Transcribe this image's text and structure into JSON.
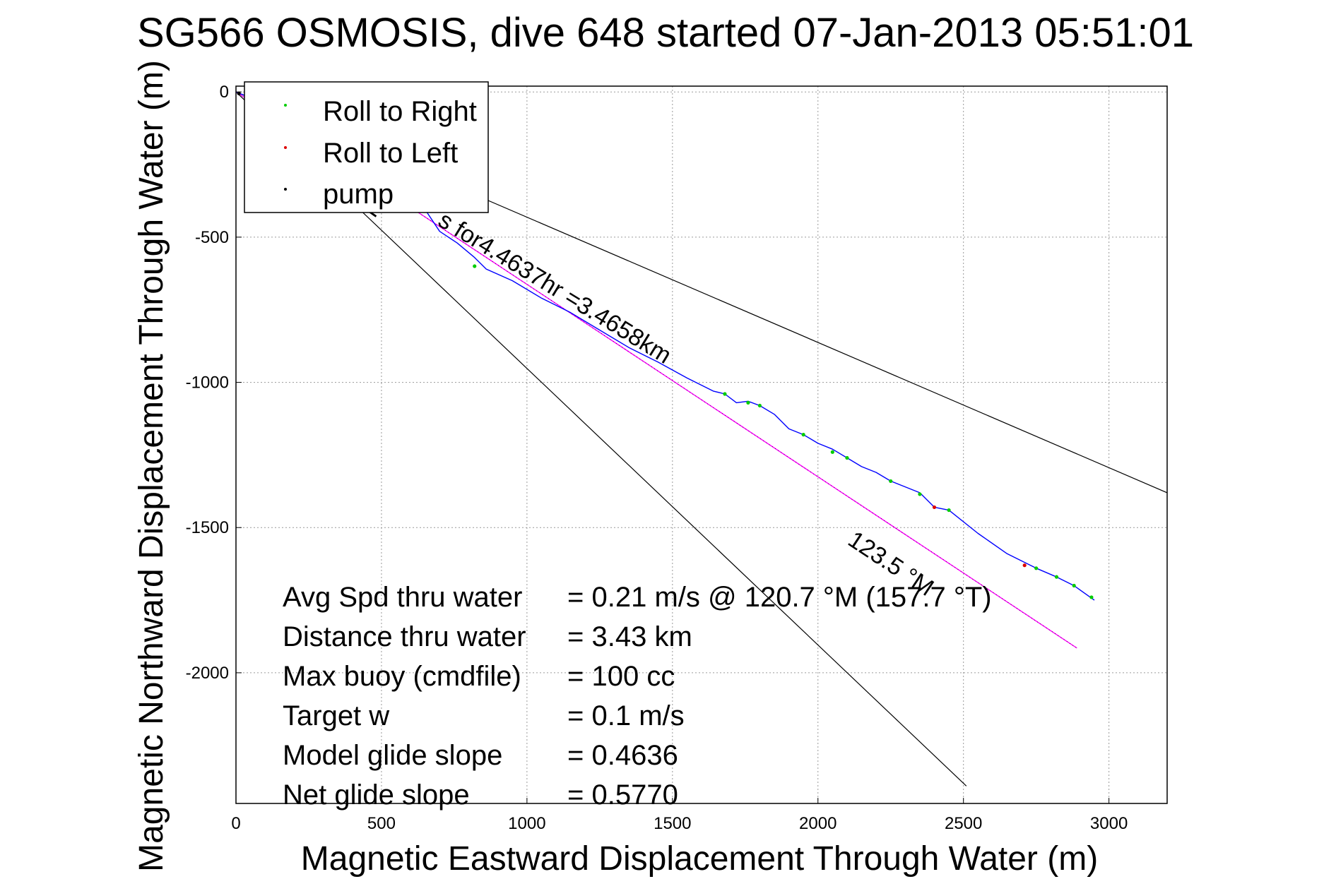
{
  "chart_data": {
    "type": "line",
    "title": "SG566 OSMOSIS, dive 648 started 07-Jan-2013 05:51:01",
    "xlabel": "Magnetic Eastward Displacement Through Water (m)",
    "ylabel": "Magnetic Northward Displacement Through Water (m)",
    "xlim": [
      0,
      3200
    ],
    "ylim": [
      -2450,
      20
    ],
    "xticks": [
      0,
      500,
      1000,
      1500,
      2000,
      2500,
      3000
    ],
    "yticks": [
      0,
      -500,
      -1000,
      -1500,
      -2000
    ],
    "grid": true,
    "legend": {
      "position": "top-left",
      "entries": [
        {
          "label": "Roll to Right",
          "color": "#00cc00"
        },
        {
          "label": "Roll to Left",
          "color": "#dd0000"
        },
        {
          "label": "pump",
          "color": "#000000"
        }
      ]
    },
    "track": {
      "color": "#0000ff",
      "points": [
        [
          0,
          0
        ],
        [
          100,
          -40
        ],
        [
          200,
          -90
        ],
        [
          300,
          -130
        ],
        [
          400,
          -190
        ],
        [
          500,
          -250
        ],
        [
          600,
          -330
        ],
        [
          700,
          -480
        ],
        [
          760,
          -520
        ],
        [
          820,
          -570
        ],
        [
          860,
          -610
        ],
        [
          950,
          -650
        ],
        [
          1050,
          -710
        ],
        [
          1150,
          -760
        ],
        [
          1250,
          -820
        ],
        [
          1350,
          -880
        ],
        [
          1450,
          -930
        ],
        [
          1550,
          -985
        ],
        [
          1640,
          -1030
        ],
        [
          1680,
          -1040
        ],
        [
          1720,
          -1070
        ],
        [
          1760,
          -1065
        ],
        [
          1800,
          -1080
        ],
        [
          1850,
          -1110
        ],
        [
          1900,
          -1160
        ],
        [
          1950,
          -1180
        ],
        [
          2000,
          -1210
        ],
        [
          2050,
          -1230
        ],
        [
          2100,
          -1260
        ],
        [
          2150,
          -1290
        ],
        [
          2200,
          -1310
        ],
        [
          2250,
          -1340
        ],
        [
          2300,
          -1360
        ],
        [
          2350,
          -1380
        ],
        [
          2400,
          -1430
        ],
        [
          2450,
          -1440
        ],
        [
          2550,
          -1520
        ],
        [
          2650,
          -1590
        ],
        [
          2750,
          -1640
        ],
        [
          2820,
          -1670
        ],
        [
          2880,
          -1700
        ],
        [
          2950,
          -1750
        ]
      ]
    },
    "roll_right_points": [
      [
        70,
        -20
      ],
      [
        820,
        -600
      ],
      [
        1680,
        -1040
      ],
      [
        1760,
        -1070
      ],
      [
        1800,
        -1080
      ],
      [
        1950,
        -1180
      ],
      [
        2050,
        -1240
      ],
      [
        2100,
        -1260
      ],
      [
        2250,
        -1340
      ],
      [
        2350,
        -1385
      ],
      [
        2450,
        -1440
      ],
      [
        2750,
        -1640
      ],
      [
        2820,
        -1670
      ],
      [
        2880,
        -1700
      ],
      [
        2940,
        -1740
      ]
    ],
    "roll_left_points": [
      [
        2400,
        -1430
      ],
      [
        2710,
        -1630
      ]
    ],
    "pump_points": [
      [
        10,
        -5
      ]
    ],
    "heading_line": {
      "color": "#ff00ff",
      "label": "123.5 °M",
      "points": [
        [
          0,
          0
        ],
        [
          2890,
          -1915
        ]
      ]
    },
    "reference_lines": [
      {
        "color": "#000000",
        "label": "M",
        "points": [
          [
            0,
            0
          ],
          [
            2510,
            -2390
          ]
        ]
      },
      {
        "color": "#000000",
        "label": "",
        "points": [
          [
            0,
            0
          ],
          [
            3200,
            -1380
          ]
        ]
      }
    ],
    "track_label": "s for4.4637hr =3.4658km"
  },
  "stats": [
    {
      "label": "Avg Spd thru water",
      "value": "=  0.21 m/s @ 120.7 °M (157.7 °T)"
    },
    {
      "label": "Distance thru water",
      "value": "=  3.43 km"
    },
    {
      "label": "Max buoy (cmdfile)",
      "value": "= 100 cc"
    },
    {
      "label": "Target w",
      "value": "= 0.1 m/s"
    },
    {
      "label": "Model glide slope",
      "value": "= 0.4636"
    },
    {
      "label": "Net glide slope",
      "value": "= 0.5770"
    }
  ]
}
